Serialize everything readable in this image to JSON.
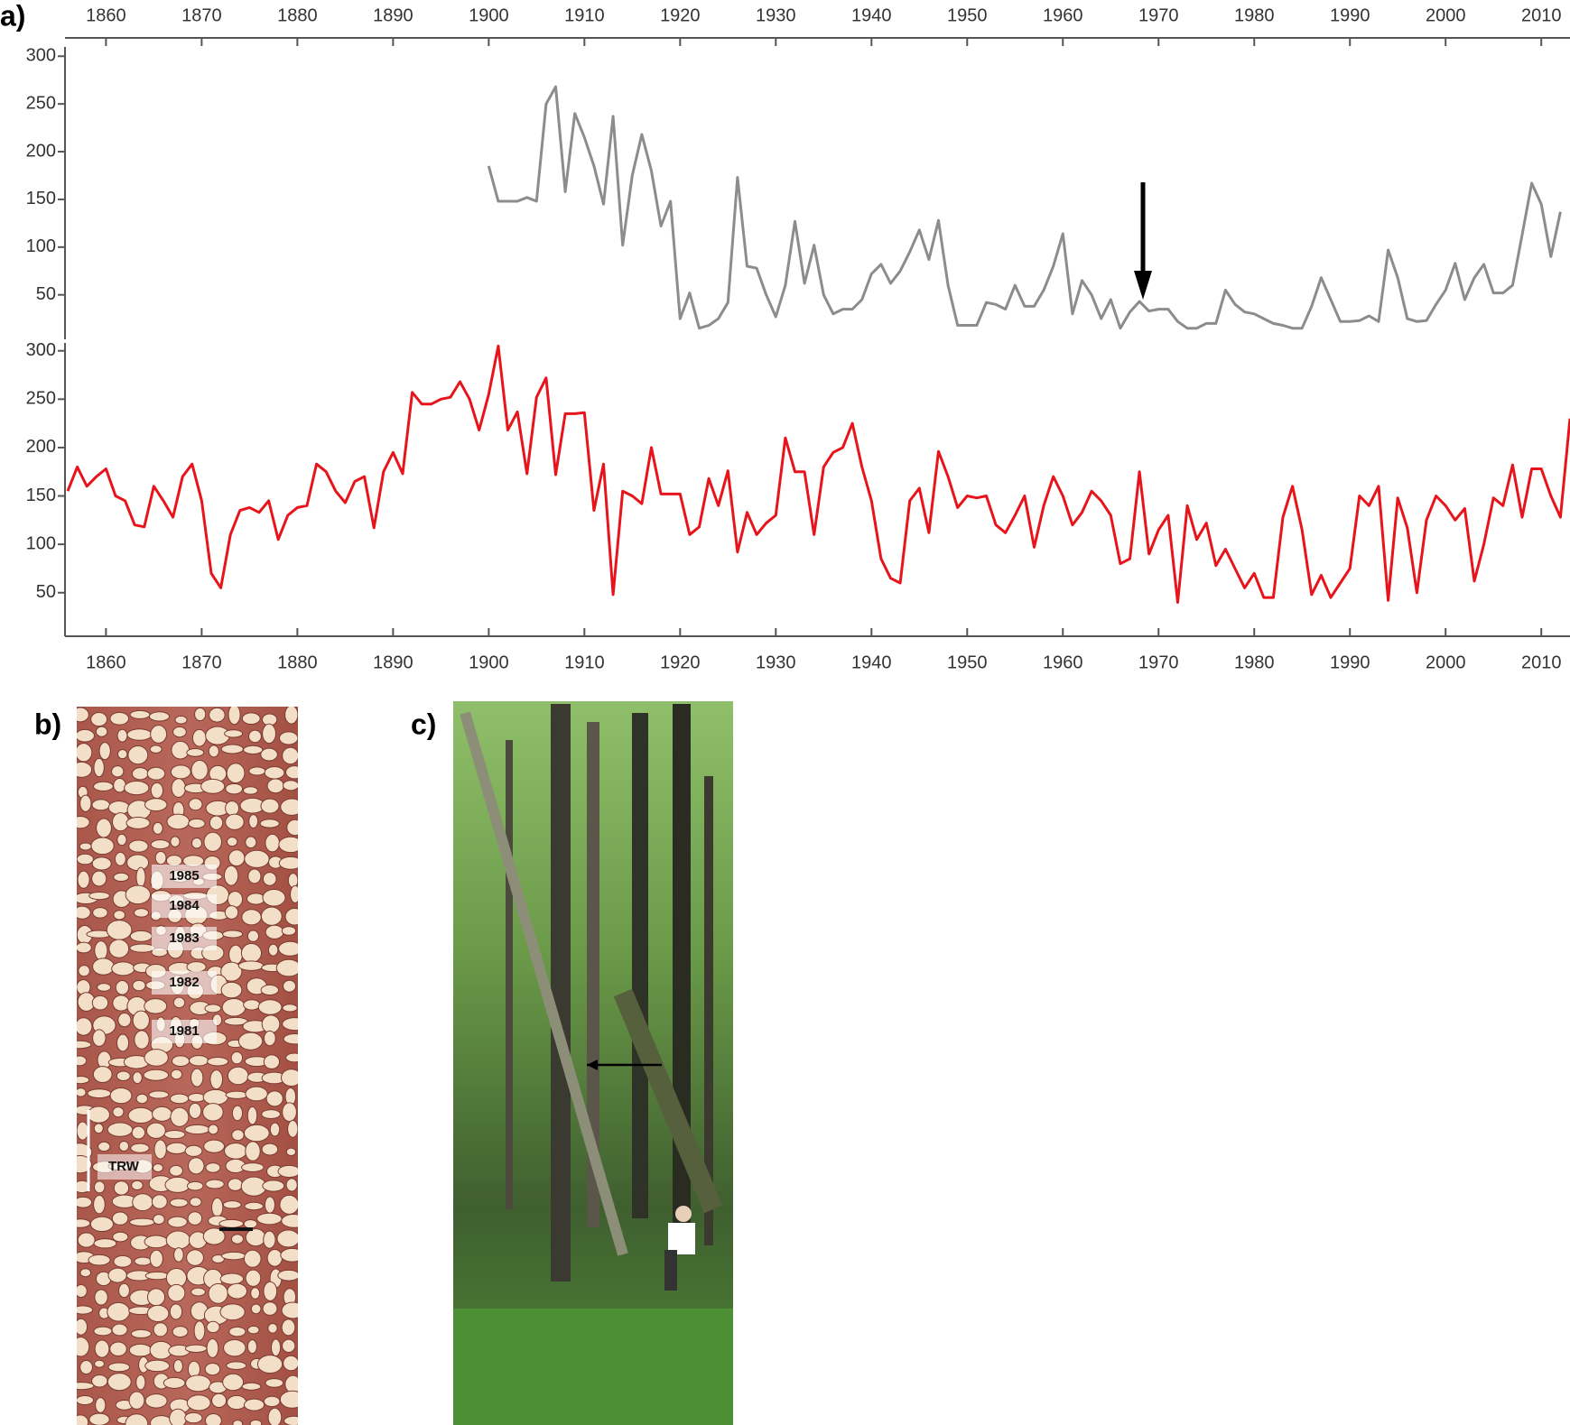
{
  "chart_data": [
    {
      "type": "line",
      "xaxis_position": "top",
      "x": [
        1900,
        1901,
        1902,
        1903,
        1904,
        1905,
        1906,
        1907,
        1908,
        1909,
        1910,
        1911,
        1912,
        1913,
        1914,
        1915,
        1916,
        1917,
        1918,
        1919,
        1920,
        1921,
        1922,
        1923,
        1924,
        1925,
        1926,
        1927,
        1928,
        1929,
        1930,
        1931,
        1932,
        1933,
        1934,
        1935,
        1936,
        1937,
        1938,
        1939,
        1940,
        1941,
        1942,
        1943,
        1944,
        1945,
        1946,
        1947,
        1948,
        1949,
        1950,
        1951,
        1952,
        1953,
        1954,
        1955,
        1956,
        1957,
        1958,
        1959,
        1960,
        1961,
        1962,
        1963,
        1964,
        1965,
        1966,
        1967,
        1968,
        1969,
        1970,
        1971,
        1972,
        1973,
        1974,
        1975,
        1976,
        1977,
        1978,
        1979,
        1980,
        1981,
        1982,
        1983,
        1984,
        1985,
        1986,
        1987,
        1988,
        1989,
        1990,
        1991,
        1992,
        1993,
        1994,
        1995,
        1996,
        1997,
        1998,
        1999,
        2000,
        2001,
        2002,
        2003,
        2004,
        2005,
        2006,
        2007,
        2008,
        2009,
        2010,
        2011,
        2012
      ],
      "series": [
        {
          "color": "#8c8c8c",
          "values": [
            185,
            148,
            148,
            148,
            152,
            148,
            250,
            268,
            158,
            240,
            215,
            185,
            145,
            237,
            102,
            175,
            218,
            180,
            122,
            148,
            25,
            52,
            15,
            18,
            25,
            42,
            173,
            80,
            78,
            50,
            27,
            60,
            127,
            62,
            102,
            50,
            30,
            35,
            35,
            45,
            72,
            82,
            62,
            75,
            95,
            118,
            87,
            128,
            60,
            18,
            18,
            18,
            42,
            40,
            35,
            60,
            38,
            38,
            55,
            80,
            114,
            30,
            65,
            50,
            25,
            45,
            15,
            32,
            43,
            33,
            35,
            35,
            22,
            15,
            15,
            20,
            20,
            55,
            40,
            32,
            30,
            25,
            20,
            18,
            15,
            15,
            38,
            68,
            45,
            22,
            22,
            23,
            28,
            22,
            97,
            68,
            25,
            22,
            23,
            40,
            55,
            83,
            45,
            68,
            82,
            52,
            52,
            60,
            113,
            167,
            145,
            90,
            137
          ]
        }
      ],
      "xlim": [
        1856,
        2013
      ],
      "xticks": [
        1860,
        1870,
        1880,
        1890,
        1900,
        1910,
        1920,
        1930,
        1940,
        1950,
        1960,
        1970,
        1980,
        1990,
        2000,
        2010
      ],
      "ylim": [
        10,
        305
      ],
      "yticks": [
        50,
        100,
        150,
        200,
        250,
        300
      ]
    },
    {
      "type": "line",
      "xaxis_position": "bottom",
      "x": [
        1856,
        1857,
        1858,
        1859,
        1860,
        1861,
        1862,
        1863,
        1864,
        1865,
        1866,
        1867,
        1868,
        1869,
        1870,
        1871,
        1872,
        1873,
        1874,
        1875,
        1876,
        1877,
        1878,
        1879,
        1880,
        1881,
        1882,
        1883,
        1884,
        1885,
        1886,
        1887,
        1888,
        1889,
        1890,
        1891,
        1892,
        1893,
        1894,
        1895,
        1896,
        1897,
        1898,
        1899,
        1900,
        1901,
        1902,
        1903,
        1904,
        1905,
        1906,
        1907,
        1908,
        1909,
        1910,
        1911,
        1912,
        1913,
        1914,
        1915,
        1916,
        1917,
        1918,
        1919,
        1920,
        1921,
        1922,
        1923,
        1924,
        1925,
        1926,
        1927,
        1928,
        1929,
        1930,
        1931,
        1932,
        1933,
        1934,
        1935,
        1936,
        1937,
        1938,
        1939,
        1940,
        1941,
        1942,
        1943,
        1944,
        1945,
        1946,
        1947,
        1948,
        1949,
        1950,
        1951,
        1952,
        1953,
        1954,
        1955,
        1956,
        1957,
        1958,
        1959,
        1960,
        1961,
        1962,
        1963,
        1964,
        1965,
        1966,
        1967,
        1968,
        1969,
        1970,
        1971,
        1972,
        1973,
        1974,
        1975,
        1976,
        1977,
        1978,
        1979,
        1980,
        1981,
        1982,
        1983,
        1984,
        1985,
        1986,
        1987,
        1988,
        1989,
        1990,
        1991,
        1992,
        1993,
        1994,
        1995,
        1996,
        1997,
        1998,
        1999,
        2000,
        2001,
        2002,
        2003,
        2004,
        2005,
        2006,
        2007,
        2008,
        2009,
        2010,
        2011,
        2012,
        2013
      ],
      "series": [
        {
          "color": "#e8141b",
          "values": [
            155,
            180,
            160,
            170,
            178,
            150,
            145,
            120,
            118,
            160,
            145,
            128,
            170,
            183,
            145,
            70,
            55,
            110,
            135,
            138,
            133,
            145,
            105,
            130,
            138,
            140,
            183,
            175,
            155,
            143,
            165,
            170,
            117,
            175,
            195,
            173,
            257,
            245,
            245,
            250,
            252,
            268,
            250,
            218,
            255,
            305,
            218,
            237,
            173,
            252,
            272,
            172,
            235,
            235,
            236,
            135,
            183,
            48,
            155,
            150,
            142,
            200,
            152,
            152,
            152,
            110,
            118,
            168,
            140,
            176,
            92,
            133,
            110,
            122,
            130,
            210,
            175,
            175,
            110,
            180,
            195,
            200,
            225,
            180,
            145,
            85,
            65,
            60,
            145,
            158,
            112,
            196,
            170,
            138,
            150,
            148,
            150,
            120,
            112,
            130,
            150,
            97,
            140,
            170,
            150,
            120,
            133,
            155,
            145,
            130,
            80,
            85,
            175,
            90,
            115,
            130,
            40,
            140,
            105,
            122,
            78,
            95,
            75,
            55,
            70,
            45,
            45,
            128,
            160,
            115,
            48,
            68,
            45,
            60,
            75,
            150,
            140,
            160,
            42,
            148,
            117,
            50,
            125,
            150,
            140,
            125,
            137,
            62,
            100,
            148,
            140,
            182,
            128,
            178,
            178,
            150,
            128,
            230
          ]
        }
      ],
      "xlim": [
        1856,
        2013
      ],
      "xticks": [
        1860,
        1870,
        1880,
        1890,
        1900,
        1910,
        1920,
        1930,
        1940,
        1950,
        1960,
        1970,
        1980,
        1990,
        2000,
        2010
      ],
      "ylim": [
        5,
        310
      ],
      "yticks": [
        50,
        100,
        150,
        200,
        250,
        300
      ]
    }
  ],
  "panel_labels": [
    "a)",
    "b)",
    "c)"
  ],
  "wood_section": {
    "year_labels": [
      "1985",
      "1984",
      "1983",
      "1982",
      "1981"
    ],
    "trw_label": "TRW"
  }
}
